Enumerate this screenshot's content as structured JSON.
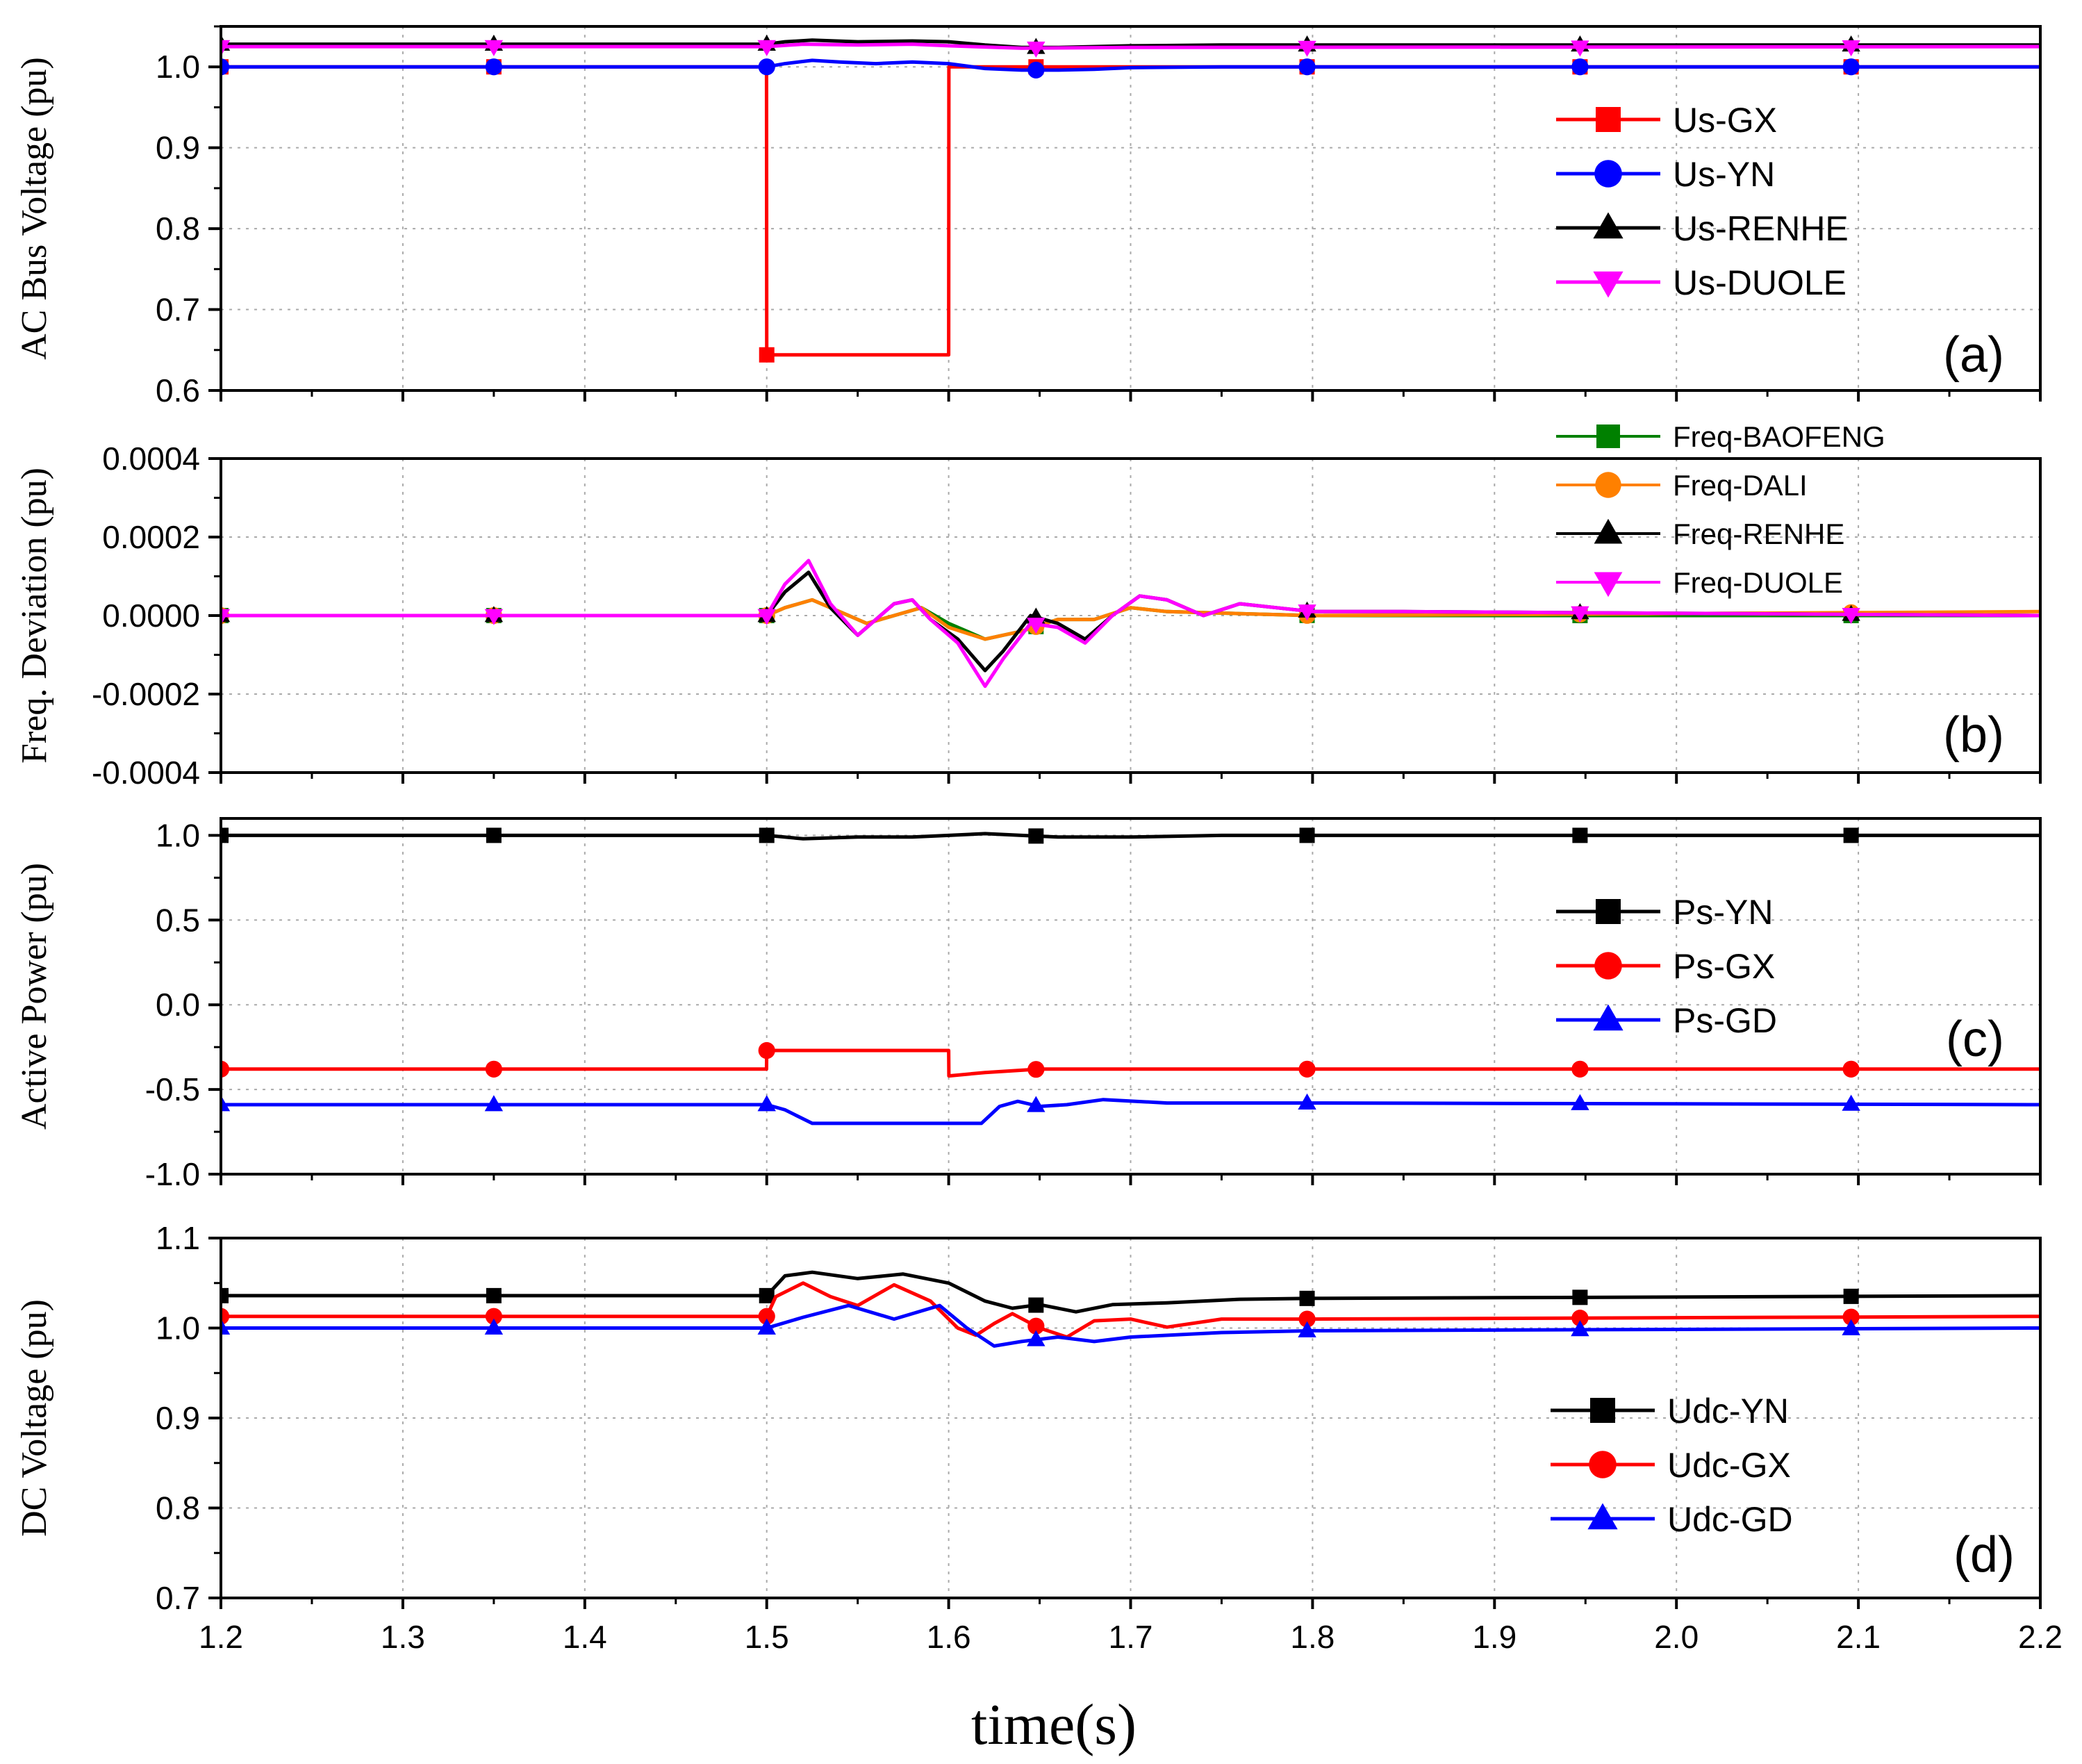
{
  "figure": {
    "xlabel": "time(s)"
  },
  "chart_data": [
    {
      "type": "line",
      "panel": "(a)",
      "title": "",
      "ylabel": "AC Bus Voltage (pu)",
      "xlabel": "time(s)",
      "xlim": [
        1.2,
        2.2
      ],
      "ylim": [
        0.6,
        1.05
      ],
      "yticks": [
        0.6,
        0.7,
        0.8,
        0.9,
        1.0
      ],
      "ytick_labels": [
        "0.6",
        "0.7",
        "0.8",
        "0.9",
        "1.0"
      ],
      "grid": true,
      "legend_position": "right",
      "series": [
        {
          "name": "Us-GX",
          "color": "#ff0000",
          "marker": "square",
          "x": [
            1.2,
            1.4999,
            1.5,
            1.6,
            1.6001,
            2.2
          ],
          "y": [
            1.0,
            1.0,
            0.644,
            0.644,
            1.0,
            1.0
          ]
        },
        {
          "name": "Us-YN",
          "color": "#0000ff",
          "marker": "circle",
          "x": [
            1.2,
            1.5,
            1.51,
            1.525,
            1.54,
            1.56,
            1.58,
            1.6,
            1.62,
            1.64,
            1.66,
            1.68,
            1.7,
            1.75,
            2.2
          ],
          "y": [
            1.0,
            1.0,
            1.004,
            1.008,
            1.006,
            1.004,
            1.006,
            1.004,
            0.998,
            0.996,
            0.996,
            0.997,
            0.999,
            1.0,
            1.0
          ]
        },
        {
          "name": "Us-RENHE",
          "color": "#000000",
          "marker": "triangle-up",
          "x": [
            1.2,
            1.5,
            1.51,
            1.525,
            1.55,
            1.58,
            1.6,
            1.62,
            1.64,
            1.66,
            1.7,
            1.75,
            2.2
          ],
          "y": [
            1.028,
            1.028,
            1.031,
            1.033,
            1.031,
            1.032,
            1.031,
            1.027,
            1.024,
            1.024,
            1.026,
            1.027,
            1.027
          ]
        },
        {
          "name": "Us-DUOLE",
          "color": "#ff00ff",
          "marker": "triangle-down",
          "x": [
            1.2,
            1.5,
            1.52,
            1.55,
            1.58,
            1.6,
            1.64,
            1.7,
            2.2
          ],
          "y": [
            1.025,
            1.025,
            1.028,
            1.027,
            1.028,
            1.026,
            1.023,
            1.024,
            1.025
          ]
        }
      ]
    },
    {
      "type": "line",
      "panel": "(b)",
      "title": "",
      "ylabel": "Freq. Deviation (pu)",
      "xlabel": "time(s)",
      "xlim": [
        1.2,
        2.2
      ],
      "ylim": [
        -0.0004,
        0.0004
      ],
      "yticks": [
        -0.0004,
        -0.0002,
        0.0,
        0.0002,
        0.0004
      ],
      "ytick_labels": [
        "-0.0004",
        "-0.0002",
        "0.0000",
        "0.0002",
        "0.0004"
      ],
      "grid": true,
      "legend_position": "top-right",
      "series": [
        {
          "name": "Freq-BAOFENG",
          "color": "#008000",
          "marker": "square",
          "x": [
            1.2,
            1.5,
            1.51,
            1.525,
            1.54,
            1.555,
            1.57,
            1.585,
            1.6,
            1.62,
            1.64,
            1.66,
            1.68,
            1.7,
            1.72,
            1.76,
            1.8,
            2.2
          ],
          "y": [
            0,
            0,
            2e-05,
            4e-05,
            1e-05,
            -2e-05,
            0.0,
            2e-05,
            -2e-05,
            -6e-05,
            -4e-05,
            -1e-05,
            -1e-05,
            2e-05,
            1e-05,
            5e-06,
            0.0,
            0.0
          ]
        },
        {
          "name": "Freq-DALI",
          "color": "#ff8000",
          "marker": "circle",
          "x": [
            1.2,
            1.5,
            1.51,
            1.525,
            1.54,
            1.555,
            1.57,
            1.585,
            1.6,
            1.62,
            1.64,
            1.66,
            1.68,
            1.7,
            1.72,
            1.76,
            1.8,
            2.2
          ],
          "y": [
            0,
            0,
            2e-05,
            4e-05,
            1e-05,
            -2e-05,
            0.0,
            2e-05,
            -3e-05,
            -6e-05,
            -4e-05,
            -1e-05,
            -1e-05,
            2e-05,
            1e-05,
            5e-06,
            0.0,
            1e-05
          ]
        },
        {
          "name": "Freq-RENHE",
          "color": "#000000",
          "marker": "triangle-up",
          "x": [
            1.2,
            1.5,
            1.51,
            1.523,
            1.535,
            1.55,
            1.57,
            1.58,
            1.59,
            1.605,
            1.62,
            1.63,
            1.645,
            1.66,
            1.675,
            1.69,
            1.705,
            1.72,
            1.74,
            1.76,
            1.78,
            1.8,
            1.85,
            2.2
          ],
          "y": [
            0,
            0,
            6e-05,
            0.00011,
            2e-05,
            -5e-05,
            3e-05,
            4e-05,
            -1e-05,
            -6e-05,
            -0.00014,
            -9e-05,
            0.0,
            -2e-05,
            -6e-05,
            0.0,
            5e-05,
            4e-05,
            0.0,
            3e-05,
            2e-05,
            1e-05,
            1e-05,
            0.0
          ]
        },
        {
          "name": "Freq-DUOLE",
          "color": "#ff00ff",
          "marker": "triangle-down",
          "x": [
            1.2,
            1.5,
            1.51,
            1.523,
            1.535,
            1.55,
            1.57,
            1.58,
            1.59,
            1.605,
            1.62,
            1.63,
            1.645,
            1.66,
            1.675,
            1.69,
            1.705,
            1.72,
            1.74,
            1.76,
            1.78,
            1.8,
            1.85,
            2.2
          ],
          "y": [
            0,
            0,
            8e-05,
            0.00014,
            3e-05,
            -5e-05,
            3e-05,
            4e-05,
            -1e-05,
            -7e-05,
            -0.00018,
            -0.00011,
            -2e-05,
            -3e-05,
            -7e-05,
            0.0,
            5e-05,
            4e-05,
            0.0,
            3e-05,
            2e-05,
            1e-05,
            1e-05,
            0.0
          ]
        }
      ]
    },
    {
      "type": "line",
      "panel": "(c)",
      "title": "",
      "ylabel": "Active Power (pu)",
      "xlabel": "time(s)",
      "xlim": [
        1.2,
        2.2
      ],
      "ylim": [
        -1.0,
        1.1
      ],
      "yticks": [
        -1.0,
        -0.5,
        0.0,
        0.5,
        1.0
      ],
      "ytick_labels": [
        "-1.0",
        "-0.5",
        "0.0",
        "0.5",
        "1.0"
      ],
      "grid": true,
      "legend_position": "right",
      "series": [
        {
          "name": "Ps-YN",
          "color": "#000000",
          "marker": "square",
          "x": [
            1.2,
            1.5,
            1.52,
            1.55,
            1.58,
            1.6,
            1.62,
            1.64,
            1.66,
            1.7,
            1.75,
            2.2
          ],
          "y": [
            1.0,
            1.0,
            0.98,
            0.99,
            0.99,
            1.0,
            1.01,
            1.0,
            0.99,
            0.99,
            1.0,
            1.0
          ]
        },
        {
          "name": "Ps-GX",
          "color": "#ff0000",
          "marker": "circle",
          "x": [
            1.2,
            1.4999,
            1.5,
            1.6,
            1.6001,
            1.62,
            1.65,
            2.2
          ],
          "y": [
            -0.38,
            -0.38,
            -0.27,
            -0.27,
            -0.42,
            -0.4,
            -0.38,
            -0.38
          ]
        },
        {
          "name": "Ps-GD",
          "color": "#0000ff",
          "marker": "triangle-up",
          "x": [
            1.2,
            1.5,
            1.51,
            1.525,
            1.6,
            1.618,
            1.628,
            1.638,
            1.65,
            1.665,
            1.685,
            1.72,
            1.8,
            2.2
          ],
          "y": [
            -0.59,
            -0.59,
            -0.62,
            -0.7,
            -0.7,
            -0.7,
            -0.6,
            -0.57,
            -0.6,
            -0.59,
            -0.56,
            -0.58,
            -0.58,
            -0.59
          ]
        }
      ]
    },
    {
      "type": "line",
      "panel": "(d)",
      "title": "",
      "ylabel": "DC Voltage (pu)",
      "xlabel": "time(s)",
      "xlim": [
        1.2,
        2.2
      ],
      "ylim": [
        0.7,
        1.1
      ],
      "yticks": [
        0.7,
        0.8,
        0.9,
        1.0,
        1.1
      ],
      "ytick_labels": [
        "0.7",
        "0.8",
        "0.9",
        "1.0",
        "1.1"
      ],
      "xticks": [
        1.2,
        1.3,
        1.4,
        1.5,
        1.6,
        1.7,
        1.8,
        1.9,
        2.0,
        2.1,
        2.2
      ],
      "xtick_labels": [
        "1.2",
        "1.3",
        "1.4",
        "1.5",
        "1.6",
        "1.7",
        "1.8",
        "1.9",
        "2.0",
        "2.1",
        "2.2"
      ],
      "grid": true,
      "legend_position": "right",
      "series": [
        {
          "name": "Udc-YN",
          "color": "#000000",
          "marker": "square",
          "x": [
            1.2,
            1.5,
            1.51,
            1.525,
            1.55,
            1.575,
            1.6,
            1.62,
            1.635,
            1.65,
            1.67,
            1.69,
            1.72,
            1.76,
            1.8,
            2.2
          ],
          "y": [
            1.036,
            1.036,
            1.058,
            1.062,
            1.055,
            1.06,
            1.05,
            1.03,
            1.022,
            1.026,
            1.018,
            1.026,
            1.028,
            1.032,
            1.033,
            1.036
          ]
        },
        {
          "name": "Udc-GX",
          "color": "#ff0000",
          "marker": "circle",
          "x": [
            1.2,
            1.5,
            1.505,
            1.52,
            1.535,
            1.55,
            1.57,
            1.59,
            1.605,
            1.615,
            1.625,
            1.635,
            1.65,
            1.665,
            1.68,
            1.7,
            1.72,
            1.75,
            1.8,
            2.2
          ],
          "y": [
            1.013,
            1.013,
            1.035,
            1.05,
            1.035,
            1.025,
            1.048,
            1.03,
            1.0,
            0.992,
            1.005,
            1.016,
            1.0,
            0.99,
            1.008,
            1.01,
            1.001,
            1.01,
            1.01,
            1.013
          ]
        },
        {
          "name": "Udc-GD",
          "color": "#0000ff",
          "marker": "triangle-up",
          "x": [
            1.2,
            1.5,
            1.52,
            1.545,
            1.57,
            1.595,
            1.61,
            1.625,
            1.64,
            1.66,
            1.68,
            1.7,
            1.75,
            1.8,
            2.2
          ],
          "y": [
            1.0,
            1.0,
            1.012,
            1.025,
            1.01,
            1.025,
            1.0,
            0.98,
            0.985,
            0.99,
            0.985,
            0.99,
            0.995,
            0.997,
            1.0
          ]
        }
      ]
    }
  ]
}
